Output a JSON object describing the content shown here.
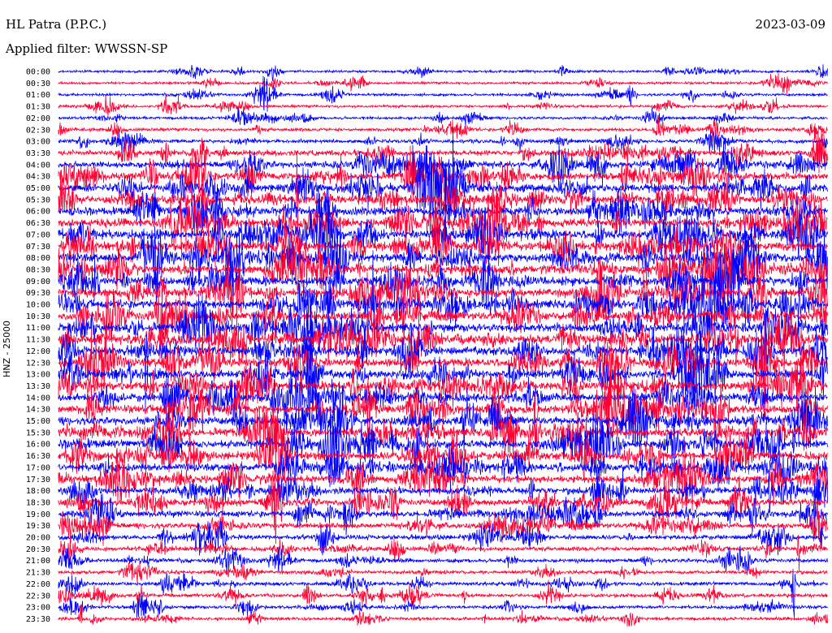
{
  "header": {
    "station": "HL Patra (P.P.C.)",
    "date": "2023-03-09",
    "filter": "Applied filter: WWSSN-SP"
  },
  "colors": {
    "odd": "#0000ff",
    "even": "#ff0033"
  },
  "chart_data": {
    "type": "line",
    "title": "HL Patra (P.P.C.)",
    "ylabel": "HNZ - 25000",
    "xlabel": "",
    "row_interval_minutes": 30,
    "rows": [
      "00:00",
      "00:30",
      "01:00",
      "01:30",
      "02:00",
      "02:30",
      "03:00",
      "03:30",
      "04:00",
      "04:30",
      "05:00",
      "05:30",
      "06:00",
      "06:30",
      "07:00",
      "07:30",
      "08:00",
      "08:30",
      "09:00",
      "09:30",
      "10:00",
      "10:30",
      "11:00",
      "11:30",
      "12:00",
      "12:30",
      "13:00",
      "13:30",
      "14:00",
      "14:30",
      "15:00",
      "15:30",
      "16:00",
      "16:30",
      "17:00",
      "17:30",
      "18:00",
      "18:30",
      "19:00",
      "19:30",
      "20:00",
      "20:30",
      "21:00",
      "21:30",
      "22:00",
      "22:30",
      "23:00",
      "23:30"
    ],
    "activity": [
      0.15,
      0.15,
      0.18,
      0.18,
      0.2,
      0.25,
      0.3,
      0.55,
      0.7,
      0.8,
      0.85,
      0.9,
      0.95,
      0.95,
      1.0,
      1.0,
      1.0,
      1.0,
      1.0,
      1.0,
      1.0,
      1.0,
      1.0,
      1.0,
      1.0,
      0.95,
      0.95,
      0.95,
      0.95,
      0.95,
      0.9,
      0.9,
      0.9,
      0.9,
      0.85,
      0.8,
      0.75,
      0.7,
      0.65,
      0.55,
      0.45,
      0.4,
      0.35,
      0.3,
      0.3,
      0.3,
      0.25,
      0.25
    ],
    "grid": false
  }
}
